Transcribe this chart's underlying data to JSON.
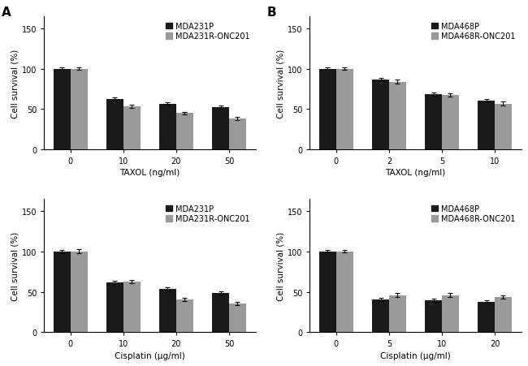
{
  "panels": {
    "A_taxol": {
      "title_label": "A",
      "xlabel": "TAXOL (ng/ml)",
      "ylabel": "Cell survival (%)",
      "xtick_labels": [
        "0",
        "10",
        "20",
        "50"
      ],
      "legend": [
        "MDA231P",
        "MDA231R-ONC201"
      ],
      "black_vals": [
        100,
        63,
        57,
        52
      ],
      "gray_vals": [
        100,
        53,
        45,
        38
      ],
      "black_err": [
        1.5,
        2.0,
        2.0,
        2.0
      ],
      "gray_err": [
        1.5,
        2.0,
        1.5,
        2.0
      ],
      "ylim": [
        0,
        165
      ],
      "yticks": [
        0,
        50,
        100,
        150
      ]
    },
    "B_taxol": {
      "title_label": "B",
      "xlabel": "TAXOL (ng/ml)",
      "ylabel": "Cell survival (%)",
      "xtick_labels": [
        "0",
        "2",
        "5",
        "10"
      ],
      "legend": [
        "MDA468P",
        "MDA468R-ONC201"
      ],
      "black_vals": [
        100,
        87,
        69,
        61
      ],
      "gray_vals": [
        100,
        84,
        68,
        57
      ],
      "black_err": [
        1.5,
        2.0,
        2.0,
        2.0
      ],
      "gray_err": [
        1.5,
        2.5,
        2.0,
        2.5
      ],
      "ylim": [
        0,
        165
      ],
      "yticks": [
        0,
        50,
        100,
        150
      ]
    },
    "A_cisplatin": {
      "title_label": "",
      "xlabel": "Cisplatin (μg/ml)",
      "ylabel": "Cell survival (%)",
      "xtick_labels": [
        "0",
        "10",
        "20",
        "50"
      ],
      "legend": [
        "MDA231P",
        "MDA231R-ONC201"
      ],
      "black_vals": [
        100,
        62,
        54,
        49
      ],
      "gray_vals": [
        100,
        63,
        41,
        36
      ],
      "black_err": [
        2.0,
        2.0,
        2.0,
        2.0
      ],
      "gray_err": [
        2.5,
        2.0,
        2.0,
        2.0
      ],
      "ylim": [
        0,
        165
      ],
      "yticks": [
        0,
        50,
        100,
        150
      ]
    },
    "B_cisplatin": {
      "title_label": "",
      "xlabel": "Cisplatin (μg/ml)",
      "ylabel": "Cell survival (%)",
      "xtick_labels": [
        "0",
        "5",
        "10",
        "20"
      ],
      "legend": [
        "MDA468P",
        "MDA468R-ONC201"
      ],
      "black_vals": [
        100,
        41,
        40,
        38
      ],
      "gray_vals": [
        100,
        46,
        46,
        44
      ],
      "black_err": [
        1.5,
        2.0,
        2.0,
        2.0
      ],
      "gray_err": [
        1.5,
        2.5,
        2.5,
        2.0
      ],
      "ylim": [
        0,
        165
      ],
      "yticks": [
        0,
        50,
        100,
        150
      ]
    }
  },
  "bar_width": 0.32,
  "black_color": "#1a1a1a",
  "gray_color": "#9a9a9a",
  "fig_width": 6.5,
  "fig_height": 4.52,
  "fontsize_label": 7.5,
  "fontsize_tick": 7,
  "fontsize_legend": 7,
  "fontsize_panel_label": 11,
  "capsize": 2,
  "elinewidth": 0.8
}
